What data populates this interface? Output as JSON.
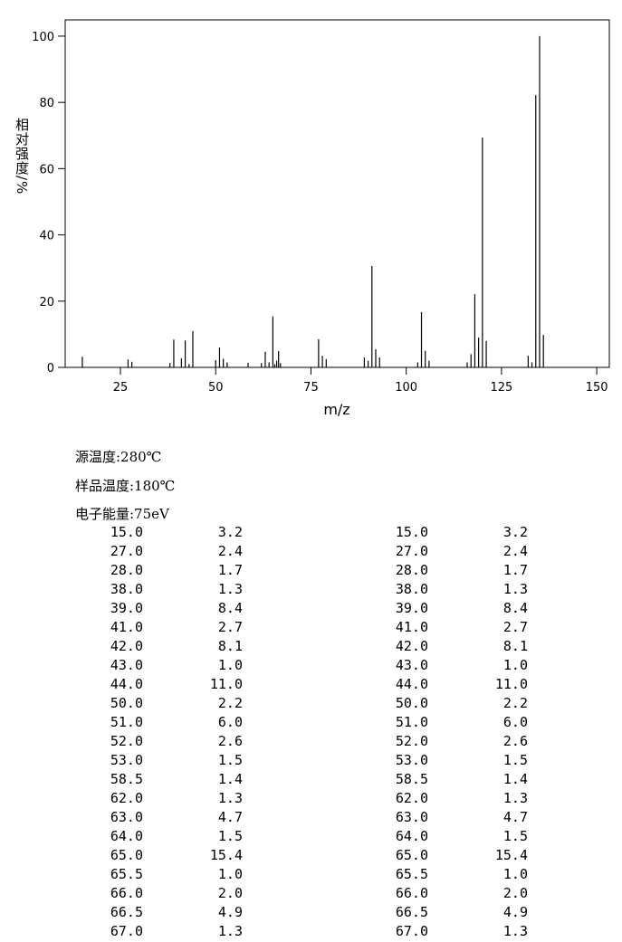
{
  "chart_data": {
    "type": "bar",
    "x_label": "m/z",
    "y_label": "相对强度/%",
    "x": [
      15,
      27,
      28,
      38,
      39,
      41,
      42,
      43,
      44,
      50,
      51,
      52,
      53,
      58.5,
      62,
      63,
      64,
      65,
      65.5,
      66,
      66.5,
      67,
      77,
      78,
      79,
      89,
      90,
      91,
      92,
      93,
      103,
      104,
      105,
      106,
      116,
      117,
      118,
      119,
      120,
      121,
      132,
      133,
      134,
      135,
      136
    ],
    "values": [
      3.2,
      2.4,
      1.7,
      1.3,
      8.4,
      2.7,
      8.1,
      1.0,
      11.0,
      2.2,
      6.0,
      2.6,
      1.5,
      1.4,
      1.3,
      4.7,
      1.5,
      15.4,
      1.0,
      2.0,
      4.9,
      1.3,
      8.5,
      3.5,
      2.5,
      3.0,
      2.0,
      30.6,
      5.5,
      3.0,
      1.5,
      16.7,
      5.0,
      2.0,
      1.5,
      4.0,
      22.1,
      9.0,
      69.4,
      8.0,
      3.5,
      1.5,
      82.2,
      100,
      9.8
    ],
    "color": "#000000",
    "xlim": [
      10.5,
      153.3
    ],
    "xticks": [
      25,
      50,
      75,
      100,
      125,
      150
    ],
    "ylim": [
      0,
      104.9
    ],
    "yticks": [
      0,
      20,
      40,
      60,
      80,
      100
    ]
  },
  "conditions": [
    "源温度:280℃",
    "样品温度:180℃",
    "电子能量:75eV"
  ],
  "table": {
    "rows": [
      [
        "15.0",
        "3.2",
        "15.0",
        "3.2"
      ],
      [
        "27.0",
        "2.4",
        "27.0",
        "2.4"
      ],
      [
        "28.0",
        "1.7",
        "28.0",
        "1.7"
      ],
      [
        "38.0",
        "1.3",
        "38.0",
        "1.3"
      ],
      [
        "39.0",
        "8.4",
        "39.0",
        "8.4"
      ],
      [
        "41.0",
        "2.7",
        "41.0",
        "2.7"
      ],
      [
        "42.0",
        "8.1",
        "42.0",
        "8.1"
      ],
      [
        "43.0",
        "1.0",
        "43.0",
        "1.0"
      ],
      [
        "44.0",
        "11.0",
        "44.0",
        "11.0"
      ],
      [
        "50.0",
        "2.2",
        "50.0",
        "2.2"
      ],
      [
        "51.0",
        "6.0",
        "51.0",
        "6.0"
      ],
      [
        "52.0",
        "2.6",
        "52.0",
        "2.6"
      ],
      [
        "53.0",
        "1.5",
        "53.0",
        "1.5"
      ],
      [
        "58.5",
        "1.4",
        "58.5",
        "1.4"
      ],
      [
        "62.0",
        "1.3",
        "62.0",
        "1.3"
      ],
      [
        "63.0",
        "4.7",
        "63.0",
        "4.7"
      ],
      [
        "64.0",
        "1.5",
        "64.0",
        "1.5"
      ],
      [
        "65.0",
        "15.4",
        "65.0",
        "15.4"
      ],
      [
        "65.5",
        "1.0",
        "65.5",
        "1.0"
      ],
      [
        "66.0",
        "2.0",
        "66.0",
        "2.0"
      ],
      [
        "66.5",
        "4.9",
        "66.5",
        "4.9"
      ],
      [
        "67.0",
        "1.3",
        "67.0",
        "1.3"
      ]
    ]
  }
}
